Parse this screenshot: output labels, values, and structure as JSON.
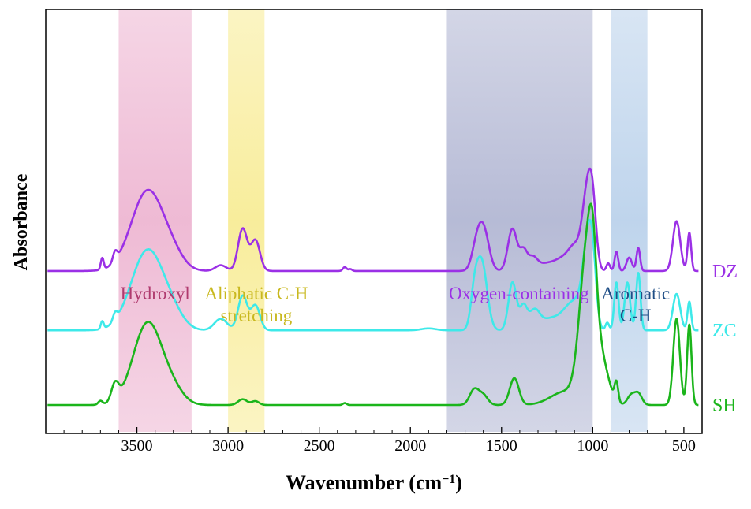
{
  "chart_data": {
    "type": "line",
    "title": "",
    "xlabel": "Wavenumber (cm",
    "xlabel_unit_sup": "−1",
    "xlabel_close": ")",
    "ylabel": "Absorbance",
    "xlim": [
      4000,
      400
    ],
    "x_reversed": true,
    "y_ticks_shown": false,
    "grid": false,
    "legend": "labels at right end of each series",
    "x_ticks": [
      3500,
      3000,
      2500,
      2000,
      1500,
      1000,
      500
    ],
    "x_tick_labels": [
      "3500",
      "3000",
      "2500",
      "2000",
      "1500",
      "1000",
      "500"
    ],
    "bands": [
      {
        "label": "Hydroxyl",
        "lines": [
          "Hydroxyl"
        ],
        "from": 3600,
        "to": 3200,
        "color": "#e9a3c6",
        "text_color": "#b03a6e"
      },
      {
        "label": "Aliphatic C-H stretching",
        "lines": [
          "Aliphatic C-H",
          "stretching"
        ],
        "from": 3000,
        "to": 2800,
        "color": "#f6e77a",
        "text_color": "#c8b81e"
      },
      {
        "label": "Oxygen-containing",
        "lines": [
          "Oxygen-containing"
        ],
        "from": 1800,
        "to": 1000,
        "color": "#9ea4c8",
        "text_color": "#9b30e6"
      },
      {
        "label": "Aromatic C-H",
        "lines": [
          "Aromatic",
          "C-H"
        ],
        "from": 900,
        "to": 700,
        "color": "#a9c6e6",
        "text_color": "#1f4e86"
      }
    ],
    "series": [
      {
        "name": "DZ",
        "color": "#9b30e6",
        "baseline": 0.7,
        "peaks": [
          [
            3690,
            0.06,
            8
          ],
          [
            3620,
            0.05,
            12
          ],
          [
            3440,
            0.42,
            90
          ],
          [
            3300,
            0.05,
            60
          ],
          [
            3040,
            0.03,
            30
          ],
          [
            2920,
            0.22,
            25
          ],
          [
            2850,
            0.16,
            25
          ],
          [
            2360,
            0.02,
            10
          ],
          [
            2330,
            0.01,
            10
          ],
          [
            1640,
            0.1,
            25
          ],
          [
            1600,
            0.22,
            30
          ],
          [
            1440,
            0.22,
            25
          ],
          [
            1380,
            0.1,
            20
          ],
          [
            1330,
            0.06,
            25
          ],
          [
            1250,
            0.04,
            60
          ],
          [
            1160,
            0.05,
            40
          ],
          [
            1110,
            0.05,
            30
          ],
          [
            1070,
            0.1,
            40
          ],
          [
            1030,
            0.34,
            25
          ],
          [
            1000,
            0.28,
            20
          ],
          [
            915,
            0.04,
            10
          ],
          [
            870,
            0.1,
            10
          ],
          [
            800,
            0.07,
            15
          ],
          [
            750,
            0.12,
            10
          ],
          [
            540,
            0.26,
            20
          ],
          [
            470,
            0.2,
            10
          ]
        ]
      },
      {
        "name": "ZC",
        "color": "#3ee9e9",
        "baseline": 0.39,
        "peaks": [
          [
            3690,
            0.04,
            8
          ],
          [
            3620,
            0.04,
            12
          ],
          [
            3440,
            0.42,
            90
          ],
          [
            3300,
            0.05,
            60
          ],
          [
            3040,
            0.06,
            35
          ],
          [
            2920,
            0.18,
            25
          ],
          [
            2850,
            0.13,
            25
          ],
          [
            1900,
            0.01,
            40
          ],
          [
            1650,
            0.14,
            20
          ],
          [
            1610,
            0.36,
            30
          ],
          [
            1440,
            0.25,
            22
          ],
          [
            1380,
            0.12,
            20
          ],
          [
            1320,
            0.1,
            30
          ],
          [
            1230,
            0.06,
            50
          ],
          [
            1140,
            0.08,
            40
          ],
          [
            1080,
            0.12,
            40
          ],
          [
            1030,
            0.38,
            25
          ],
          [
            1000,
            0.3,
            20
          ],
          [
            920,
            0.04,
            10
          ],
          [
            870,
            0.25,
            12
          ],
          [
            810,
            0.25,
            15
          ],
          [
            750,
            0.3,
            12
          ],
          [
            540,
            0.19,
            20
          ],
          [
            470,
            0.15,
            10
          ]
        ]
      },
      {
        "name": "SH",
        "color": "#1bb51b",
        "baseline": 0.0,
        "peaks": [
          [
            3700,
            0.02,
            12
          ],
          [
            3620,
            0.09,
            20
          ],
          [
            3440,
            0.43,
            80
          ],
          [
            3300,
            0.06,
            60
          ],
          [
            2920,
            0.03,
            25
          ],
          [
            2850,
            0.02,
            20
          ],
          [
            2360,
            0.01,
            10
          ],
          [
            1650,
            0.08,
            25
          ],
          [
            1600,
            0.05,
            25
          ],
          [
            1430,
            0.14,
            25
          ],
          [
            1150,
            0.07,
            80
          ],
          [
            1030,
            0.8,
            40
          ],
          [
            1000,
            0.3,
            20
          ],
          [
            950,
            0.2,
            40
          ],
          [
            870,
            0.1,
            10
          ],
          [
            790,
            0.05,
            20
          ],
          [
            750,
            0.06,
            20
          ],
          [
            540,
            0.45,
            18
          ],
          [
            470,
            0.42,
            12
          ]
        ]
      }
    ]
  }
}
